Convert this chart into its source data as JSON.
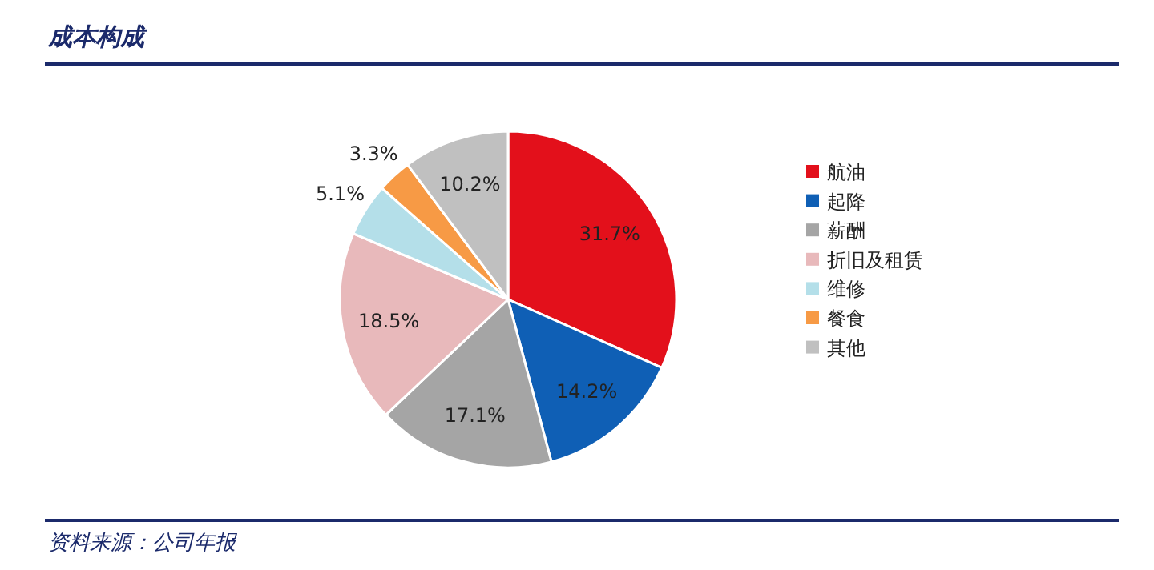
{
  "chart_data": {
    "type": "pie",
    "title": "成本构成",
    "categories": [
      "航油",
      "起降",
      "薪酬",
      "折旧及租赁",
      "维修",
      "餐食",
      "其他"
    ],
    "values": [
      31.7,
      14.2,
      17.1,
      18.5,
      5.1,
      3.3,
      10.2
    ],
    "colors": [
      "#e3101b",
      "#0f5fb5",
      "#a5a5a5",
      "#e8b9bb",
      "#b4dfe9",
      "#f79a45",
      "#c0c0c0"
    ],
    "value_labels": [
      "31.7%",
      "14.2%",
      "17.1%",
      "18.5%",
      "5.1%",
      "3.3%",
      "10.2%"
    ],
    "legend": "right",
    "annotations": [
      "资料来源：公司年报"
    ]
  }
}
